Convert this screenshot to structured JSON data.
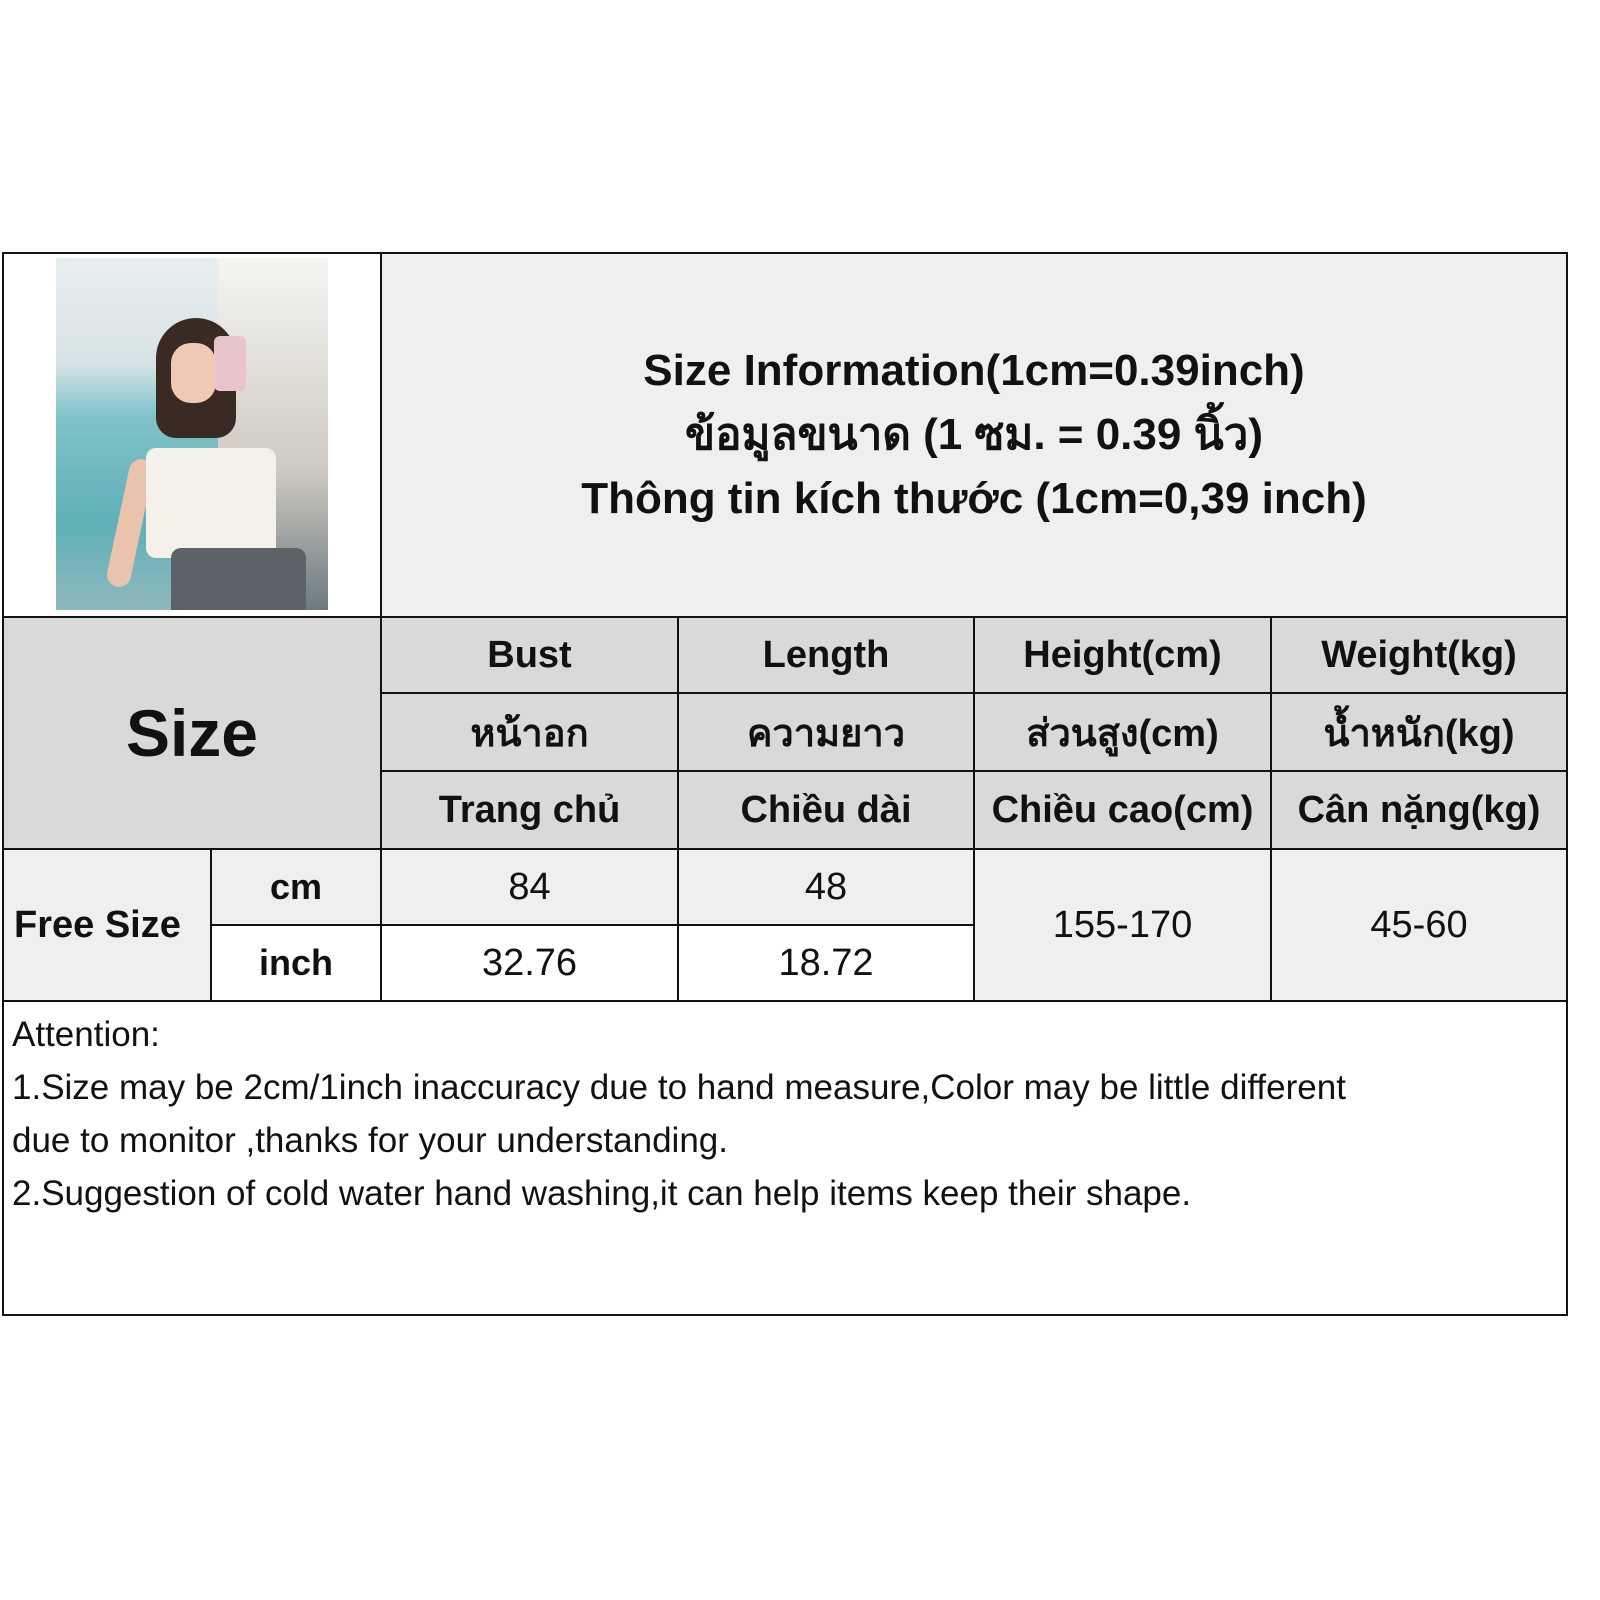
{
  "title": {
    "lines": [
      "Size Information(1cm=0.39inch)",
      "ข้อมูลขนาด (1 ซม. = 0.39 นิ้ว)",
      "Thông tin kích thước (1cm=0,39 inch)"
    ]
  },
  "size_label": "Size",
  "columns": [
    {
      "en": "Bust",
      "th": "หน้าอก",
      "vi": "Trang chủ"
    },
    {
      "en": "Length",
      "th": "ความยาว",
      "vi": "Chiều dài"
    },
    {
      "en": "Height(cm)",
      "th": "ส่วนสูง(cm)",
      "vi": "Chiều cao(cm)"
    },
    {
      "en": "Weight(kg)",
      "th": "น้ำหนัก(kg)",
      "vi": "Cân nặng(kg)"
    }
  ],
  "rows": {
    "size_name": "Free Size",
    "cm": {
      "unit": "cm",
      "bust": "84",
      "length": "48"
    },
    "inch": {
      "unit": "inch",
      "bust": "32.76",
      "length": "18.72"
    },
    "height": "155-170",
    "weight": "45-60"
  },
  "attention": {
    "heading": "Attention:",
    "line1": "1.Size may be 2cm/1inch inaccuracy due to hand measure,Color may be little different",
    "line2": "due to monitor ,thanks for your understanding.",
    "line3": "2.Suggestion of cold water hand washing,it can help items keep their shape."
  }
}
